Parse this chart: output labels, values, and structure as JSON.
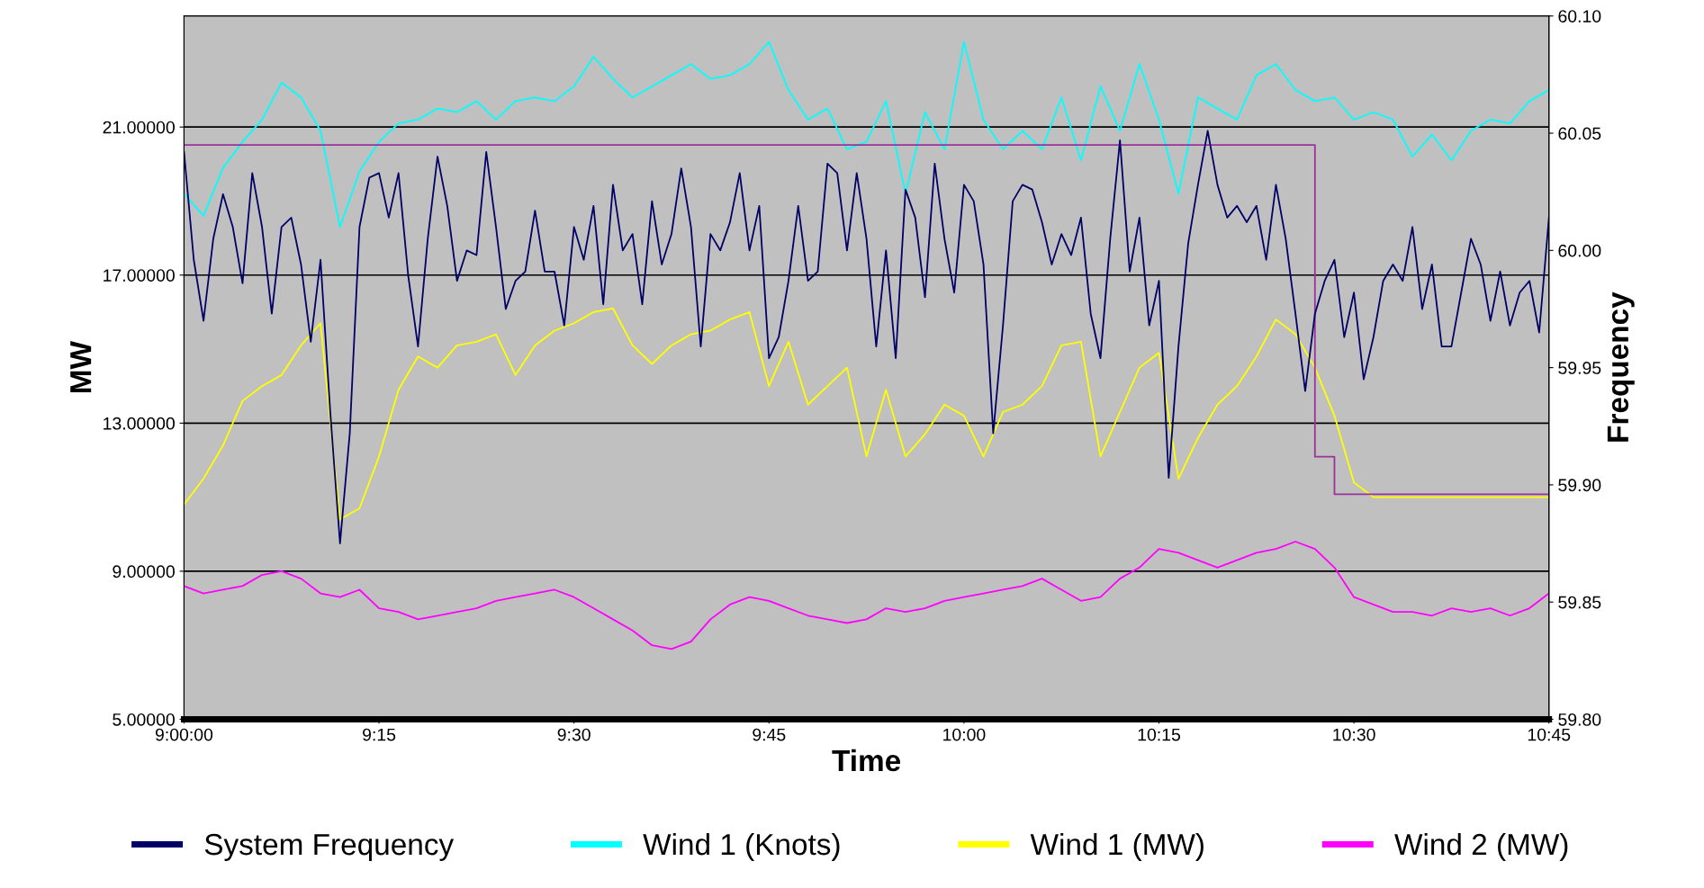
{
  "chart_data": {
    "type": "line",
    "xlabel": "Time",
    "ylabel": "MW",
    "y2label": "Frequency",
    "xlim": [
      9,
      10.75
    ],
    "xticks": [
      {
        "value": 9,
        "label": "9:00:00"
      },
      {
        "value": 9.25,
        "label": "9:15"
      },
      {
        "value": 9.5,
        "label": "9:30"
      },
      {
        "value": 9.75,
        "label": "9:45"
      },
      {
        "value": 10,
        "label": "10:00"
      },
      {
        "value": 10.25,
        "label": "10:15"
      },
      {
        "value": 10.5,
        "label": "10:30"
      },
      {
        "value": 10.75,
        "label": "10:45"
      }
    ],
    "ylim": [
      5,
      24
    ],
    "yticks": [
      {
        "value": 5,
        "label": "5.00000"
      },
      {
        "value": 9,
        "label": "9.00000"
      },
      {
        "value": 13,
        "label": "13.00000"
      },
      {
        "value": 17,
        "label": "17.00000"
      },
      {
        "value": 21,
        "label": "21.00000"
      }
    ],
    "y2lim": [
      59.8,
      60.1
    ],
    "y2ticks": [
      {
        "value": 59.8,
        "label": "59.80"
      },
      {
        "value": 59.85,
        "label": "59.85"
      },
      {
        "value": 59.9,
        "label": "59.90"
      },
      {
        "value": 59.95,
        "label": "59.95"
      },
      {
        "value": 60,
        "label": "60.00"
      },
      {
        "value": 60.05,
        "label": "60.05"
      },
      {
        "value": 60.1,
        "label": "60.10"
      }
    ],
    "grid": "y",
    "legend": "bottom",
    "series": [
      {
        "type": "line",
        "color": "#993399",
        "axis": "y2",
        "x": [
          9,
          10.45,
          10.45,
          10.475,
          10.475,
          10.75
        ],
        "values": [
          60.045,
          60.045,
          59.912,
          59.912,
          59.896,
          59.896
        ]
      },
      {
        "name": "Wind 1 (Knots)",
        "color": "#00ffff",
        "x": [
          9.0,
          9.025,
          9.05,
          9.075,
          9.1,
          9.125,
          9.15,
          9.175,
          9.2,
          9.225,
          9.25,
          9.275,
          9.3,
          9.325,
          9.35,
          9.375,
          9.4,
          9.425,
          9.45,
          9.475,
          9.5,
          9.525,
          9.55,
          9.575,
          9.6,
          9.625,
          9.65,
          9.675,
          9.7,
          9.725,
          9.75,
          9.775,
          9.8,
          9.825,
          9.85,
          9.875,
          9.9,
          9.925,
          9.95,
          9.975,
          10.0,
          10.025,
          10.05,
          10.075,
          10.1,
          10.125,
          10.15,
          10.175,
          10.2,
          10.225,
          10.25,
          10.275,
          10.3,
          10.325,
          10.35,
          10.375,
          10.4,
          10.425,
          10.45,
          10.475,
          10.5,
          10.525,
          10.55,
          10.575,
          10.6,
          10.625,
          10.65,
          10.675,
          10.7,
          10.725,
          10.75
        ],
        "values": [
          19.2,
          18.6,
          19.9,
          20.6,
          21.2,
          22.2,
          21.8,
          20.9,
          18.3,
          19.8,
          20.6,
          21.1,
          21.2,
          21.5,
          21.4,
          21.7,
          21.2,
          21.7,
          21.8,
          21.7,
          22.1,
          22.9,
          22.3,
          21.8,
          22.1,
          22.4,
          22.7,
          22.3,
          22.4,
          22.7,
          23.3,
          22.0,
          21.2,
          21.5,
          20.4,
          20.6,
          21.7,
          19.2,
          21.4,
          20.4,
          23.3,
          21.2,
          20.4,
          20.9,
          20.4,
          21.8,
          20.1,
          22.1,
          20.9,
          22.7,
          21.2,
          19.2,
          21.8,
          21.5,
          21.2,
          22.4,
          22.7,
          22.0,
          21.7,
          21.8,
          21.2,
          21.4,
          21.2,
          20.2,
          20.8,
          20.1,
          20.9,
          21.2,
          21.1,
          21.7,
          22.0
        ]
      },
      {
        "name": "Wind 1 (MW)",
        "color": "#ffff00",
        "x": [
          9.0,
          9.025,
          9.05,
          9.075,
          9.1,
          9.125,
          9.15,
          9.175,
          9.2,
          9.225,
          9.25,
          9.275,
          9.3,
          9.325,
          9.35,
          9.375,
          9.4,
          9.425,
          9.45,
          9.475,
          9.5,
          9.525,
          9.55,
          9.575,
          9.6,
          9.625,
          9.65,
          9.675,
          9.7,
          9.725,
          9.75,
          9.775,
          9.8,
          9.825,
          9.85,
          9.875,
          9.9,
          9.925,
          9.95,
          9.975,
          10.0,
          10.025,
          10.05,
          10.075,
          10.1,
          10.125,
          10.15,
          10.175,
          10.2,
          10.225,
          10.25,
          10.275,
          10.3,
          10.325,
          10.35,
          10.375,
          10.4,
          10.425,
          10.45,
          10.475,
          10.5,
          10.525,
          10.55,
          10.575,
          10.6,
          10.625,
          10.65,
          10.675,
          10.7,
          10.725,
          10.75
        ],
        "values": [
          10.8,
          11.5,
          12.4,
          13.6,
          14.0,
          14.3,
          15.1,
          15.7,
          10.4,
          10.7,
          12.1,
          13.9,
          14.8,
          14.5,
          15.1,
          15.2,
          15.4,
          14.3,
          15.1,
          15.5,
          15.7,
          16.0,
          16.1,
          15.1,
          14.6,
          15.1,
          15.4,
          15.5,
          15.8,
          16.0,
          14.0,
          15.2,
          13.5,
          14.0,
          14.5,
          12.1,
          13.9,
          12.1,
          12.7,
          13.5,
          13.2,
          12.1,
          13.3,
          13.5,
          14.0,
          15.1,
          15.2,
          12.1,
          13.3,
          14.5,
          14.9,
          11.5,
          12.6,
          13.5,
          14.0,
          14.8,
          15.8,
          15.4,
          14.5,
          13.2,
          11.4,
          11.0,
          11.0,
          11.0,
          11.0,
          11.0,
          11.0,
          11.0,
          11.0,
          11.0,
          11.0
        ]
      },
      {
        "name": "Wind 2 (MW)",
        "color": "#ff00ff",
        "x": [
          9.0,
          9.025,
          9.05,
          9.075,
          9.1,
          9.125,
          9.15,
          9.175,
          9.2,
          9.225,
          9.25,
          9.275,
          9.3,
          9.325,
          9.35,
          9.375,
          9.4,
          9.425,
          9.45,
          9.475,
          9.5,
          9.525,
          9.55,
          9.575,
          9.6,
          9.625,
          9.65,
          9.675,
          9.7,
          9.725,
          9.75,
          9.775,
          9.8,
          9.825,
          9.85,
          9.875,
          9.9,
          9.925,
          9.95,
          9.975,
          10.0,
          10.025,
          10.05,
          10.075,
          10.1,
          10.125,
          10.15,
          10.175,
          10.2,
          10.225,
          10.25,
          10.275,
          10.3,
          10.325,
          10.35,
          10.375,
          10.4,
          10.425,
          10.45,
          10.475,
          10.5,
          10.525,
          10.55,
          10.575,
          10.6,
          10.625,
          10.65,
          10.675,
          10.7,
          10.725,
          10.75
        ],
        "values": [
          8.6,
          8.4,
          8.5,
          8.6,
          8.9,
          9.0,
          8.8,
          8.4,
          8.3,
          8.5,
          8.0,
          7.9,
          7.7,
          7.8,
          7.9,
          8.0,
          8.2,
          8.3,
          8.4,
          8.5,
          8.3,
          8.0,
          7.7,
          7.4,
          7.0,
          6.9,
          7.1,
          7.7,
          8.1,
          8.3,
          8.2,
          8.0,
          7.8,
          7.7,
          7.6,
          7.7,
          8.0,
          7.9,
          8.0,
          8.2,
          8.3,
          8.4,
          8.5,
          8.6,
          8.8,
          8.5,
          8.2,
          8.3,
          8.8,
          9.1,
          9.6,
          9.5,
          9.3,
          9.1,
          9.3,
          9.5,
          9.6,
          9.8,
          9.6,
          9.1,
          8.3,
          8.1,
          7.9,
          7.9,
          7.8,
          8.0,
          7.9,
          8.0,
          7.8,
          8.0,
          8.4
        ]
      },
      {
        "name": "System Frequency",
        "color": "#000066",
        "axis": "y2",
        "x": [
          9.0,
          9.0125,
          9.025,
          9.0375,
          9.05,
          9.0625,
          9.075,
          9.0875,
          9.1,
          9.1125,
          9.125,
          9.1375,
          9.15,
          9.1625,
          9.175,
          9.1875,
          9.2,
          9.2125,
          9.225,
          9.2375,
          9.25,
          9.2625,
          9.275,
          9.2875,
          9.3,
          9.3125,
          9.325,
          9.3375,
          9.35,
          9.3625,
          9.375,
          9.3875,
          9.4,
          9.4125,
          9.425,
          9.4375,
          9.45,
          9.4625,
          9.475,
          9.4875,
          9.5,
          9.5125,
          9.525,
          9.5375,
          9.55,
          9.5625,
          9.575,
          9.5875,
          9.6,
          9.6125,
          9.625,
          9.6375,
          9.65,
          9.6625,
          9.675,
          9.6875,
          9.7,
          9.7125,
          9.725,
          9.7375,
          9.75,
          9.7625,
          9.775,
          9.7875,
          9.8,
          9.8125,
          9.825,
          9.8375,
          9.85,
          9.8625,
          9.875,
          9.8875,
          9.9,
          9.9125,
          9.925,
          9.9375,
          9.95,
          9.9625,
          9.975,
          9.9875,
          10.0,
          10.0125,
          10.025,
          10.0375,
          10.05,
          10.0625,
          10.075,
          10.0875,
          10.1,
          10.1125,
          10.125,
          10.1375,
          10.15,
          10.1625,
          10.175,
          10.1875,
          10.2,
          10.2125,
          10.225,
          10.2375,
          10.25,
          10.2625,
          10.275,
          10.2875,
          10.3,
          10.3125,
          10.325,
          10.3375,
          10.35,
          10.3625,
          10.375,
          10.3875,
          10.4,
          10.4125,
          10.425,
          10.4375,
          10.45,
          10.4625,
          10.475,
          10.4875,
          10.5,
          10.5125,
          10.525,
          10.5375,
          10.55,
          10.5625,
          10.575,
          10.5875,
          10.6,
          10.6125,
          10.625,
          10.6375,
          10.65,
          10.6625,
          10.675,
          10.6875,
          10.7,
          10.7125,
          10.725,
          10.7375,
          10.75
        ],
        "values": [
          60.042,
          59.996,
          59.97,
          60.005,
          60.024,
          60.01,
          59.986,
          60.033,
          60.01,
          59.973,
          60.01,
          60.014,
          59.994,
          59.961,
          59.996,
          59.931,
          59.875,
          59.922,
          60.01,
          60.031,
          60.033,
          60.014,
          60.033,
          59.989,
          59.959,
          60.005,
          60.04,
          60.019,
          59.987,
          60.0,
          59.998,
          60.042,
          60.01,
          59.975,
          59.987,
          59.991,
          60.017,
          59.991,
          59.991,
          59.968,
          60.01,
          59.996,
          60.019,
          59.977,
          60.028,
          60.0,
          60.007,
          59.977,
          60.021,
          59.994,
          60.007,
          60.035,
          60.01,
          59.959,
          60.007,
          60.0,
          60.012,
          60.033,
          60.0,
          60.019,
          59.954,
          59.963,
          59.987,
          60.019,
          59.987,
          59.991,
          60.037,
          60.033,
          60.0,
          60.033,
          60.005,
          59.959,
          60.0,
          59.954,
          60.026,
          60.014,
          59.98,
          60.037,
          60.005,
          59.982,
          60.028,
          60.021,
          59.994,
          59.922,
          59.968,
          60.021,
          60.028,
          60.026,
          60.012,
          59.994,
          60.007,
          59.998,
          60.014,
          59.973,
          59.954,
          60.005,
          60.047,
          59.991,
          60.014,
          59.968,
          59.987,
          59.903,
          59.959,
          60.003,
          60.028,
          60.051,
          60.028,
          60.014,
          60.019,
          60.012,
          60.019,
          59.996,
          60.028,
          60.005,
          59.973,
          59.94,
          59.973,
          59.987,
          59.996,
          59.963,
          59.982,
          59.945,
          59.963,
          59.987,
          59.994,
          59.987,
          60.01,
          59.975,
          59.994,
          59.959,
          59.959,
          59.982,
          60.005,
          59.994,
          59.97,
          59.991,
          59.968,
          59.982,
          59.987,
          59.965,
          60.014
        ]
      }
    ]
  }
}
